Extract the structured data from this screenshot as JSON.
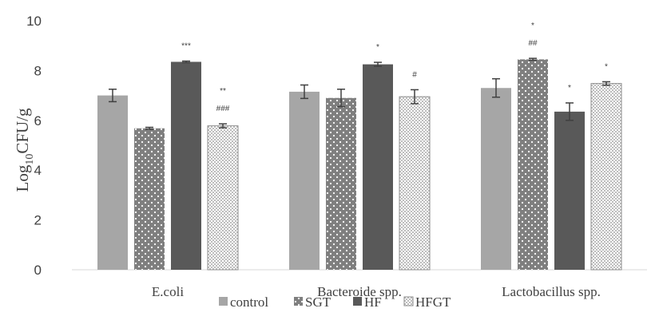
{
  "chart_data": {
    "type": "bar",
    "title": "",
    "ylabel": {
      "base": "Log",
      "sub": "10",
      "rest": "CFU/g"
    },
    "xlabel": "",
    "ylim": [
      0,
      10
    ],
    "yticks": [
      "0",
      "2",
      "4",
      "6",
      "8",
      "10"
    ],
    "grid": false,
    "legend_position": "bottom",
    "categories": [
      "E.coli",
      "Bacteroide spp.",
      "Lactobacillus spp."
    ],
    "series": [
      {
        "name": "control",
        "pattern": "solid-light",
        "color": "#a6a6a6",
        "values": [
          7.0,
          7.15,
          7.3
        ],
        "errors": [
          0.25,
          0.27,
          0.37
        ],
        "annotations": [
          [],
          [],
          []
        ]
      },
      {
        "name": "SGT",
        "pattern": "dots",
        "color": "#7f7f7f",
        "values": [
          5.68,
          6.9,
          8.45
        ],
        "errors": [
          0.04,
          0.35,
          0.04
        ],
        "annotations": [
          [],
          [],
          [
            "*",
            "##"
          ]
        ]
      },
      {
        "name": "HF",
        "pattern": "solid-dark",
        "color": "#595959",
        "values": [
          8.35,
          8.25,
          6.35
        ],
        "errors": [
          0.03,
          0.08,
          0.35
        ],
        "annotations": [
          [
            "***"
          ],
          [
            "*"
          ],
          [
            "*"
          ]
        ]
      },
      {
        "name": "HFGT",
        "pattern": "checker",
        "color": "#a6a6a6",
        "values": [
          5.78,
          6.95,
          7.48
        ],
        "errors": [
          0.08,
          0.28,
          0.07
        ],
        "annotations": [
          [
            "**",
            "###"
          ],
          [
            "#"
          ],
          [
            "*"
          ]
        ]
      }
    ]
  }
}
